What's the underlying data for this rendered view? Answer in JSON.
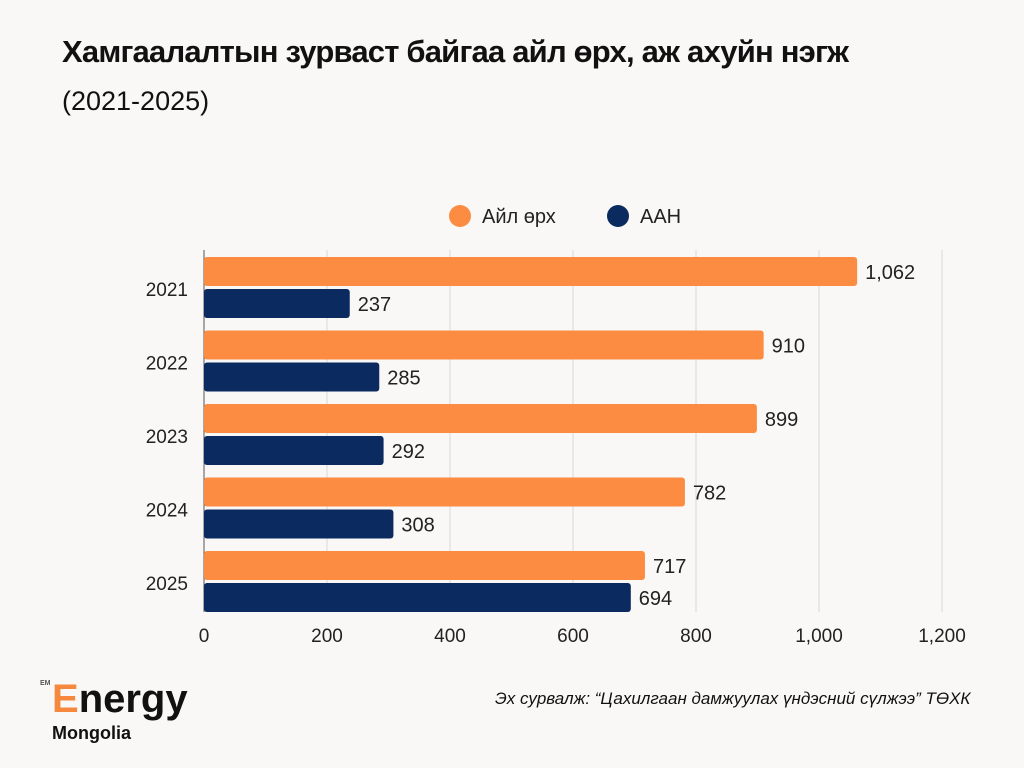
{
  "title": "Хамгаалалтын зурваст байгаа айл өрх, аж ахуйн нэгж",
  "subtitle": "(2021-2025)",
  "source": "Эх сурвалж: “Цахилгаан дамжуулах үндэсний сүлжээ” ТӨХК",
  "logo": {
    "line1_first": "E",
    "line1_rest": "nergy",
    "line2": "Mongolia",
    "mark": "EM"
  },
  "colors": {
    "orange": "#fb8c42",
    "navy": "#0b2a60"
  },
  "chart_data": {
    "type": "bar",
    "orientation": "horizontal",
    "categories": [
      "2021",
      "2022",
      "2023",
      "2024",
      "2025"
    ],
    "series": [
      {
        "name": "Айл өрх",
        "color": "#fb8c42",
        "values": [
          1062,
          910,
          899,
          782,
          717
        ],
        "labels": [
          "1,062",
          "910",
          "899",
          "782",
          "717"
        ]
      },
      {
        "name": "ААН",
        "color": "#0b2a60",
        "values": [
          237,
          285,
          292,
          308,
          694
        ],
        "labels": [
          "237",
          "285",
          "292",
          "308",
          "694"
        ]
      }
    ],
    "xlim": [
      0,
      1200
    ],
    "xticks": [
      0,
      200,
      400,
      600,
      800,
      1000,
      1200
    ],
    "xtick_labels": [
      "0",
      "200",
      "400",
      "600",
      "800",
      "1,000",
      "1,200"
    ],
    "grid": true,
    "legend_position": "top-center"
  }
}
